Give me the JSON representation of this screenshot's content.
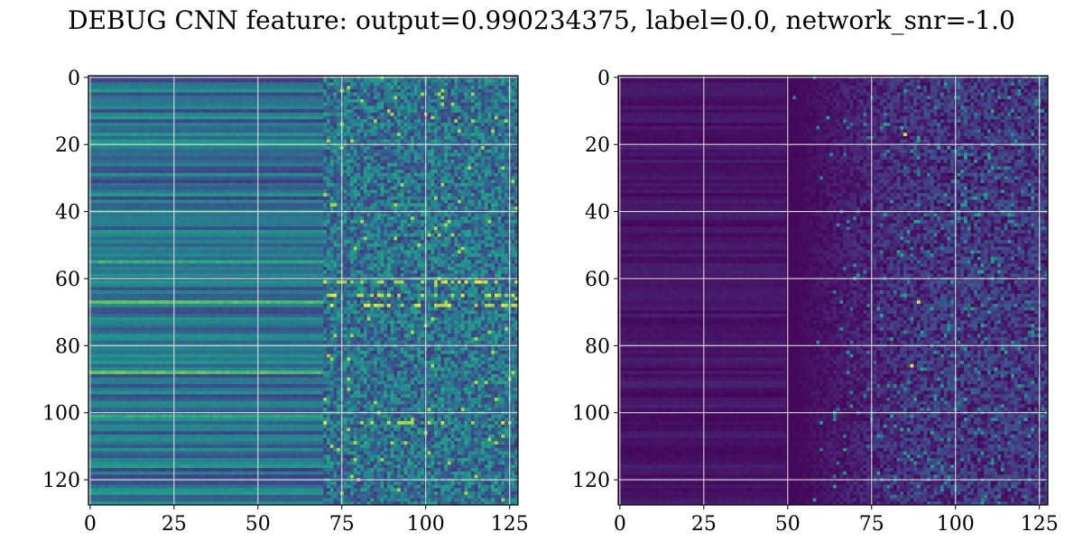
{
  "figure": {
    "title": "DEBUG CNN feature: output=0.990234375, label=0.0, network_snr=-1.0"
  },
  "chart_data": [
    {
      "type": "heatmap",
      "title": "",
      "xlabel": "",
      "ylabel": "",
      "grid": true,
      "colormap": "viridis",
      "rows": 128,
      "cols": 128,
      "xlim": [
        0,
        127
      ],
      "ylim": [
        127,
        0
      ],
      "x_ticks": [
        0,
        25,
        50,
        75,
        100,
        125
      ],
      "y_ticks": [
        0,
        20,
        40,
        60,
        80,
        100,
        120
      ],
      "pattern": "horizontal row bands (stable per-row level) for x < 70, noisy speckle for x >= 70; bright yellow rows near y=67 and y=88; bright speckles near y=61, 65, 68, 103",
      "values": "dense 128x128 matrix, not individually readable; synthesized procedurally"
    },
    {
      "type": "heatmap",
      "title": "",
      "xlabel": "",
      "ylabel": "",
      "grid": true,
      "colormap": "viridis",
      "rows": 128,
      "cols": 128,
      "xlim": [
        0,
        127
      ],
      "ylim": [
        127,
        0
      ],
      "x_ticks": [
        0,
        25,
        50,
        75,
        100,
        125
      ],
      "y_ticks": [
        0,
        20,
        40,
        60,
        80,
        100,
        120
      ],
      "pattern": "mostly dark purple, faint row bands for x < 50, sparse teal/green speckles increasing for x >= 50; isolated bright points near (89, 67), (85, 17), (87, 86)",
      "values": "dense 128x128 matrix, not individually readable; synthesized procedurally"
    }
  ]
}
